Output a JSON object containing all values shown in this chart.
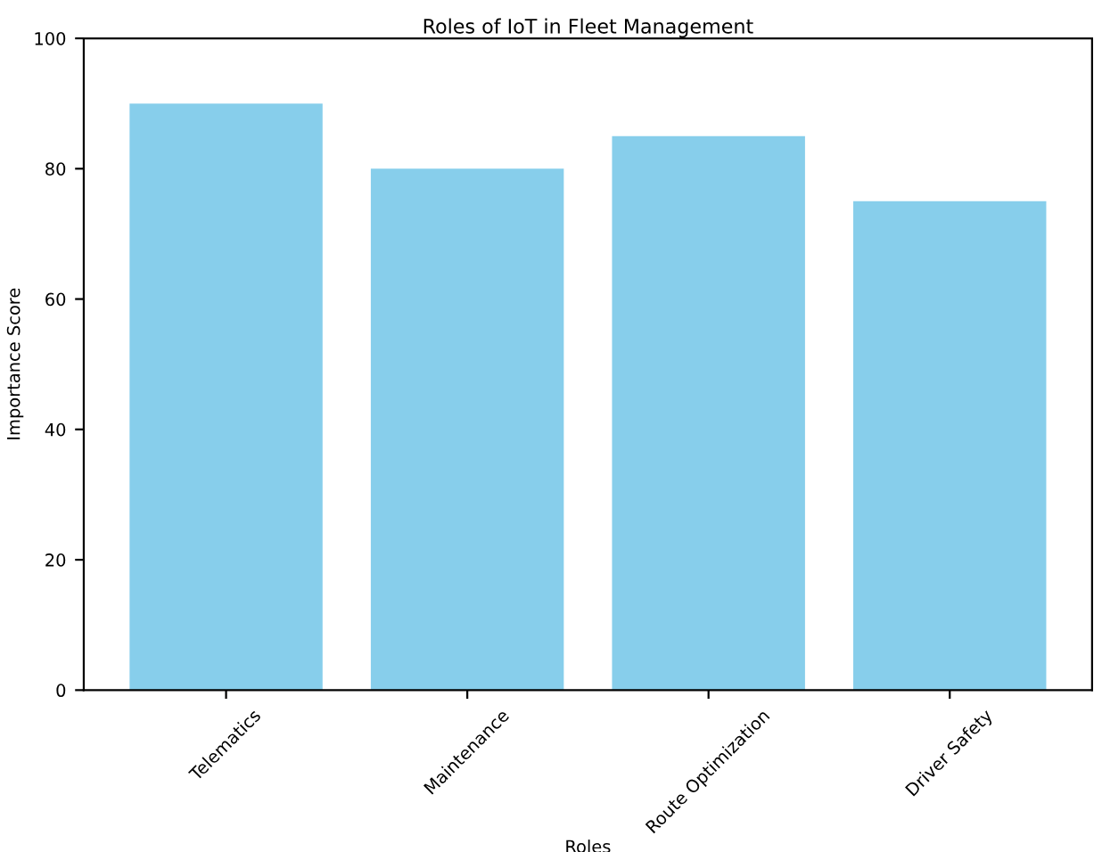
{
  "chart_data": {
    "type": "bar",
    "title": "Roles of IoT in Fleet Management",
    "xlabel": "Roles",
    "ylabel": "Importance Score",
    "categories": [
      "Telematics",
      "Maintenance",
      "Route Optimization",
      "Driver Safety"
    ],
    "values": [
      90,
      80,
      85,
      75
    ],
    "color": "#87ceeb",
    "ylim": [
      0,
      100
    ],
    "yticks": [
      0,
      20,
      40,
      60,
      80,
      100
    ],
    "grid": false
  }
}
